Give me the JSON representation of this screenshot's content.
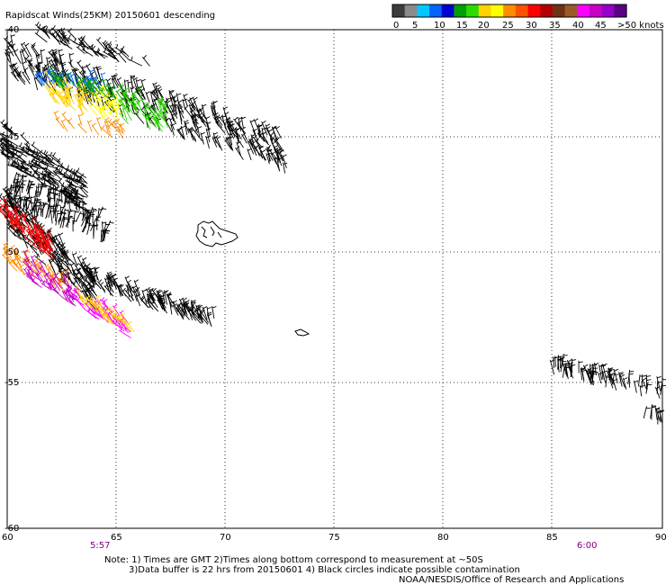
{
  "title": "Rapidscat Winds(25KM) 20150601 descending",
  "legend": {
    "labels": [
      "0",
      "5",
      "10",
      "15",
      "20",
      "25",
      "30",
      "35",
      "40",
      "45",
      ">50 knots"
    ],
    "colors": [
      "#3c3c3c",
      "#8a8a8a",
      "#00c8ff",
      "#0064ff",
      "#0000d2",
      "#00a000",
      "#2adc00",
      "#ffd200",
      "#ffff00",
      "#ff8c00",
      "#ff5000",
      "#ff0000",
      "#b40000",
      "#6e3214",
      "#9a5a28",
      "#ff00ff",
      "#c800c8",
      "#9600c8",
      "#5a0082"
    ]
  },
  "map": {
    "lon_ticks": [
      "60",
      "65",
      "70",
      "75",
      "80",
      "85",
      "90"
    ],
    "lat_ticks": [
      "-40",
      "-45",
      "-50",
      "-55",
      "-60"
    ],
    "lon_range": [
      60,
      90
    ],
    "lat_range": [
      -40,
      -60
    ],
    "grid": "dotted"
  },
  "pass_times": {
    "left": "5:57",
    "right": "6:00",
    "color": "#800080"
  },
  "notes": {
    "line1": "Note: 1) Times are GMT 2)Times along bottom correspond to measurement at ~50S",
    "line2": "3)Data buffer is 22 hrs from 20150601 4) Black circles indicate possible contamination",
    "line3": "NOAA/NESDIS/Office of Research and Applications"
  }
}
